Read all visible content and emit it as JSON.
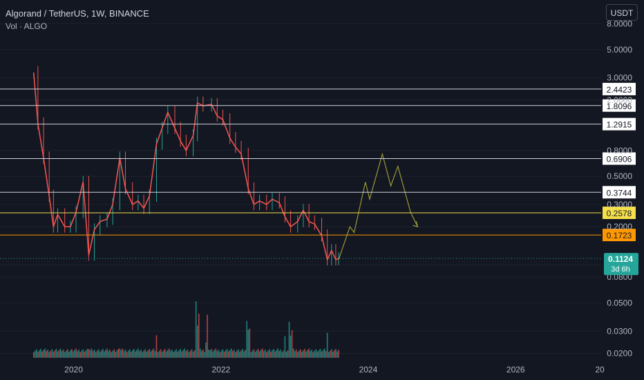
{
  "header": {
    "symbol": "Algorand / TetherUS, 1W, BINANCE",
    "volume_label": "Vol · ALGO",
    "currency_button": "USDT"
  },
  "price_badge": {
    "price": "0.1124",
    "countdown": "3d 6h"
  },
  "colors": {
    "background": "#131722",
    "up": "#26a69a",
    "down": "#ef5350",
    "hline": "#d1d4dc",
    "yellow_line": "#f5e04a",
    "orange_line": "#ff9800",
    "projection": "#9a9a38"
  },
  "chart_data": {
    "type": "line",
    "title": "Algorand / TetherUS, 1W, BINANCE",
    "y_scale": "log",
    "ylim": [
      0.018,
      9
    ],
    "xlim": [
      "2019-01-01",
      "2027-03-01"
    ],
    "y_ticks": [
      "8.0000",
      "5.0000",
      "3.0000",
      "2.0000",
      "0.8000",
      "0.5000",
      "0.3000",
      "0.2000",
      "0.1000",
      "0.0800",
      "0.0500",
      "0.0300",
      "0.0200"
    ],
    "x_ticks": [
      "2020",
      "2022",
      "2024",
      "2026",
      "20"
    ],
    "horizontal_levels": [
      {
        "label": "2.4423",
        "value": 2.4423,
        "color": "white"
      },
      {
        "label": "1.8096",
        "value": 1.8096,
        "color": "white"
      },
      {
        "label": "1.2915",
        "value": 1.2915,
        "color": "white"
      },
      {
        "label": "0.6906",
        "value": 0.6906,
        "color": "white"
      },
      {
        "label": "0.3744",
        "value": 0.3744,
        "color": "white"
      },
      {
        "label": "0.2578",
        "value": 0.2578,
        "color": "yellow"
      },
      {
        "label": "0.1723",
        "value": 0.1723,
        "color": "orange"
      }
    ],
    "current_price": 0.1124,
    "series": [
      {
        "type": "line",
        "points": [
          [
            "2019-06-17",
            3.3
          ],
          [
            "2019-07-08",
            1.3
          ],
          [
            "2019-08-05",
            0.7
          ],
          [
            "2019-09-02",
            0.35
          ],
          [
            "2019-09-23",
            0.2
          ],
          [
            "2019-10-14",
            0.25
          ],
          [
            "2019-11-18",
            0.2
          ],
          [
            "2019-12-16",
            0.2
          ],
          [
            "2020-01-13",
            0.26
          ],
          [
            "2020-02-17",
            0.45
          ],
          [
            "2020-03-16",
            0.12
          ],
          [
            "2020-04-13",
            0.19
          ],
          [
            "2020-05-11",
            0.22
          ],
          [
            "2020-06-15",
            0.23
          ],
          [
            "2020-07-13",
            0.3
          ],
          [
            "2020-08-17",
            0.7
          ],
          [
            "2020-09-14",
            0.4
          ],
          [
            "2020-10-19",
            0.3
          ],
          [
            "2020-11-16",
            0.32
          ],
          [
            "2020-12-14",
            0.28
          ],
          [
            "2021-01-11",
            0.35
          ],
          [
            "2021-02-15",
            0.9
          ],
          [
            "2021-03-15",
            1.2
          ],
          [
            "2021-04-12",
            1.6
          ],
          [
            "2021-05-17",
            1.2
          ],
          [
            "2021-06-14",
            0.95
          ],
          [
            "2021-07-12",
            0.8
          ],
          [
            "2021-08-16",
            1.05
          ],
          [
            "2021-09-06",
            1.9
          ],
          [
            "2021-10-04",
            1.8
          ],
          [
            "2021-11-15",
            1.85
          ],
          [
            "2021-12-13",
            1.5
          ],
          [
            "2022-01-10",
            1.4
          ],
          [
            "2022-02-14",
            1.0
          ],
          [
            "2022-03-14",
            0.85
          ],
          [
            "2022-04-11",
            0.75
          ],
          [
            "2022-05-16",
            0.4
          ],
          [
            "2022-06-13",
            0.3
          ],
          [
            "2022-07-11",
            0.32
          ],
          [
            "2022-08-15",
            0.3
          ],
          [
            "2022-09-12",
            0.33
          ],
          [
            "2022-10-17",
            0.31
          ],
          [
            "2022-11-14",
            0.24
          ],
          [
            "2022-12-12",
            0.2
          ],
          [
            "2023-01-16",
            0.22
          ],
          [
            "2023-02-13",
            0.27
          ],
          [
            "2023-03-13",
            0.22
          ],
          [
            "2023-04-10",
            0.21
          ],
          [
            "2023-05-15",
            0.17
          ],
          [
            "2023-06-12",
            0.11
          ],
          [
            "2023-07-03",
            0.13
          ],
          [
            "2023-07-24",
            0.11
          ],
          [
            "2023-08-07",
            0.1124
          ]
        ]
      },
      {
        "type": "projection",
        "points": [
          [
            "2023-08-07",
            0.11
          ],
          [
            "2023-10-02",
            0.2
          ],
          [
            "2023-10-23",
            0.18
          ],
          [
            "2023-12-18",
            0.45
          ],
          [
            "2024-01-08",
            0.33
          ],
          [
            "2024-03-11",
            0.75
          ],
          [
            "2024-04-22",
            0.42
          ],
          [
            "2024-05-27",
            0.6
          ],
          [
            "2024-07-29",
            0.26
          ],
          [
            "2024-09-02",
            0.2
          ]
        ]
      }
    ],
    "volume": {
      "x_range": [
        "2019-06-17",
        "2023-08-07"
      ],
      "peaks": [
        [
          "2019-06-17",
          0.026
        ],
        [
          "2020-03-16",
          0.027
        ],
        [
          "2020-08-17",
          0.028
        ],
        [
          "2021-02-15",
          0.032
        ],
        [
          "2021-09-06",
          0.09
        ],
        [
          "2021-10-25",
          0.048
        ],
        [
          "2022-05-16",
          0.058
        ],
        [
          "2022-11-14",
          0.03
        ],
        [
          "2022-12-12",
          0.06
        ],
        [
          "2023-06-12",
          0.034
        ]
      ]
    }
  }
}
